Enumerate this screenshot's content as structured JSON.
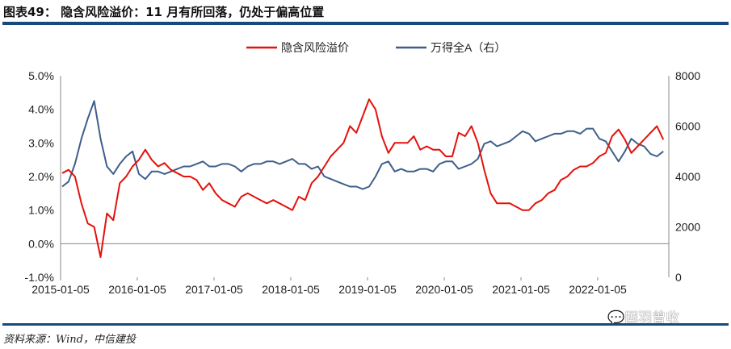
{
  "title": "图表49： 隐含风险溢价：11 月有所回落，仍处于偏高位置",
  "source": "资料来源：Wind，中信建投",
  "watermark": "固羽曾收",
  "chart_data": {
    "type": "line",
    "title": "",
    "legend_position": "top",
    "grid": false,
    "x_start": "2015-01",
    "x_end": "2022-11",
    "x_frequency": "monthly",
    "x_ticks": [
      "2015-01-05",
      "2016-01-05",
      "2017-01-05",
      "2018-01-05",
      "2019-01-05",
      "2020-01-05",
      "2021-01-05",
      "2022-01-05"
    ],
    "y_left": {
      "lim": [
        -1.0,
        5.0
      ],
      "ticks": [
        "-1.0%",
        "0.0%",
        "1.0%",
        "2.0%",
        "3.0%",
        "4.0%",
        "5.0%"
      ]
    },
    "y_right": {
      "lim": [
        0,
        8000
      ],
      "ticks": [
        "0",
        "2000",
        "4000",
        "6000",
        "8000"
      ]
    },
    "series": [
      {
        "name": "隐含风险溢价",
        "axis": "left",
        "unit": "%",
        "color": "#e3120b",
        "values": [
          2.1,
          2.2,
          2.0,
          1.2,
          0.6,
          0.5,
          -0.4,
          0.9,
          0.7,
          1.8,
          2.0,
          2.3,
          2.5,
          2.8,
          2.5,
          2.3,
          2.4,
          2.2,
          2.1,
          2.0,
          2.0,
          1.9,
          1.6,
          1.8,
          1.5,
          1.3,
          1.2,
          1.1,
          1.4,
          1.5,
          1.4,
          1.3,
          1.2,
          1.3,
          1.2,
          1.1,
          1.0,
          1.4,
          1.3,
          1.8,
          2.0,
          2.3,
          2.6,
          2.8,
          3.0,
          3.5,
          3.3,
          3.8,
          4.3,
          4.0,
          3.2,
          2.7,
          3.0,
          3.0,
          3.0,
          3.2,
          2.8,
          2.9,
          2.8,
          2.8,
          2.6,
          2.6,
          3.3,
          3.2,
          3.5,
          3.0,
          2.2,
          1.5,
          1.2,
          1.2,
          1.2,
          1.1,
          1.0,
          1.0,
          1.2,
          1.3,
          1.5,
          1.6,
          1.9,
          2.0,
          2.2,
          2.3,
          2.3,
          2.4,
          2.6,
          2.7,
          3.2,
          3.4,
          3.1,
          2.7,
          2.9,
          3.1,
          3.3,
          3.5,
          3.1
        ]
      },
      {
        "name": "万得全A（右）",
        "axis": "right",
        "color": "#3e5f8a",
        "values": [
          3600,
          3800,
          4500,
          5500,
          6300,
          7000,
          5500,
          4400,
          4100,
          4500,
          4800,
          5000,
          4100,
          3900,
          4200,
          4200,
          4100,
          4200,
          4300,
          4400,
          4400,
          4500,
          4600,
          4400,
          4400,
          4500,
          4500,
          4400,
          4200,
          4400,
          4500,
          4500,
          4600,
          4600,
          4500,
          4600,
          4700,
          4500,
          4500,
          4300,
          4400,
          4000,
          3900,
          3800,
          3700,
          3600,
          3600,
          3500,
          3600,
          4000,
          4500,
          4600,
          4200,
          4300,
          4200,
          4200,
          4300,
          4300,
          4200,
          4500,
          4600,
          4600,
          4300,
          4400,
          4500,
          4700,
          5300,
          5400,
          5200,
          5300,
          5400,
          5600,
          5800,
          5700,
          5400,
          5500,
          5600,
          5700,
          5700,
          5800,
          5800,
          5700,
          5900,
          5900,
          5500,
          5400,
          5000,
          4600,
          5000,
          5500,
          5300,
          5200,
          4900,
          4800,
          5000
        ]
      }
    ]
  }
}
